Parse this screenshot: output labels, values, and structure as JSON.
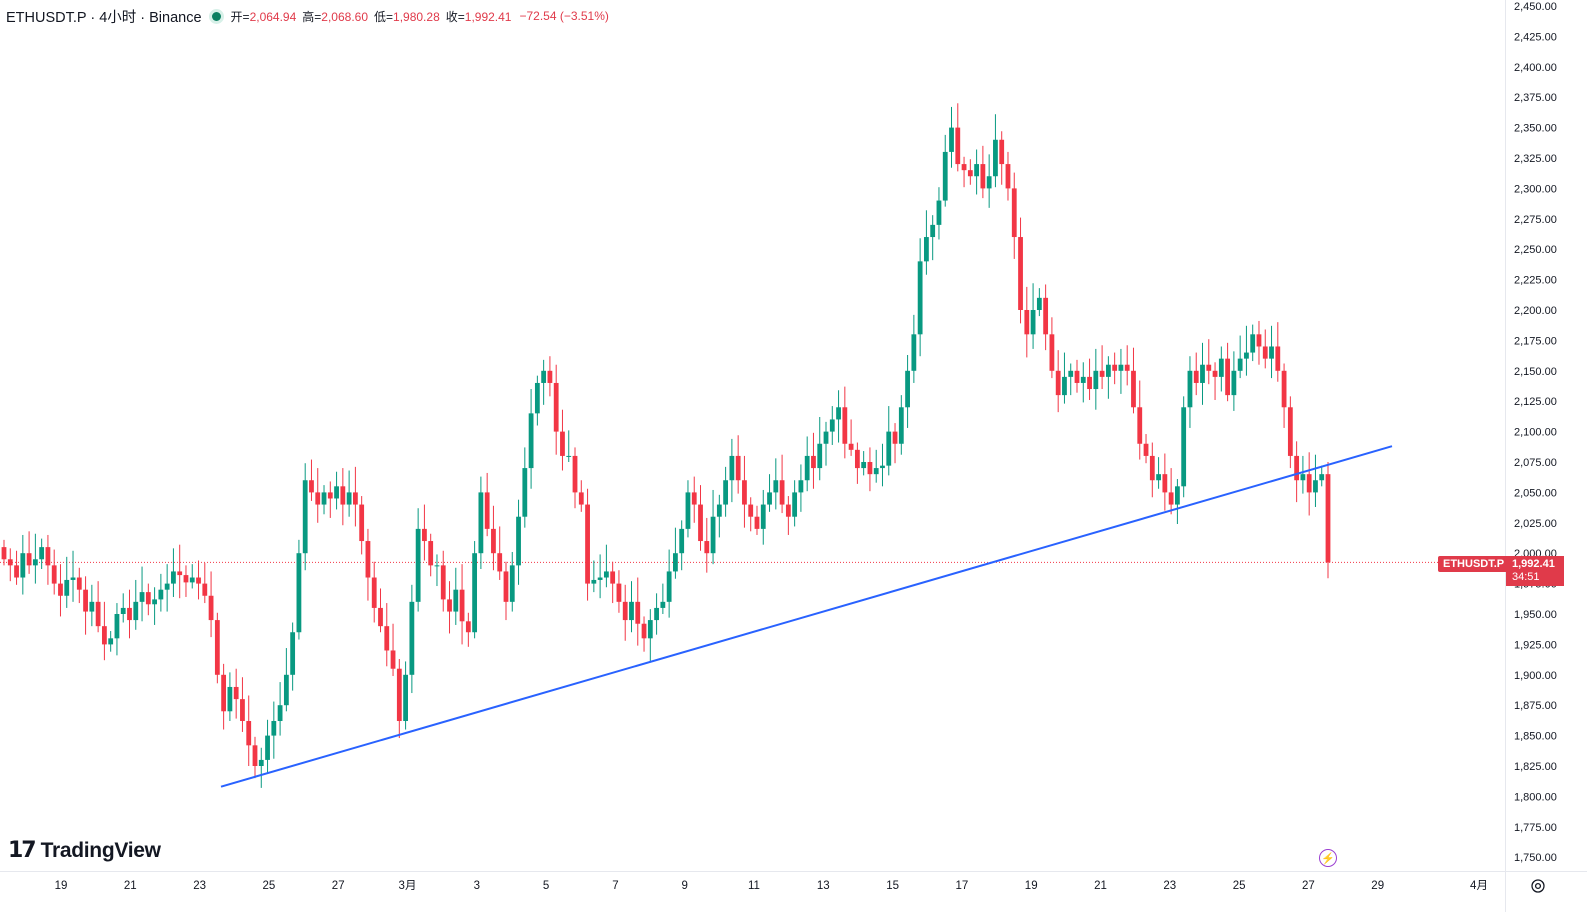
{
  "header": {
    "symbol": "ETHUSDT.P · 4小时 · Binance",
    "open_label": "开=",
    "open": "2,064.94",
    "high_label": "高=",
    "high": "2,068.60",
    "low_label": "低=",
    "low": "1,980.28",
    "close_label": "收=",
    "close": "1,992.41",
    "change": "−72.54 (−3.51%)"
  },
  "colors": {
    "up": "#089981",
    "down": "#f23645",
    "trendline": "#2962ff",
    "axis_text": "#131722"
  },
  "brand": "TradingView",
  "last_price_label": "ETHUSDT.P",
  "last_price": "1,992.41",
  "countdown": "34:51",
  "chart_data": {
    "type": "candlestick",
    "interval": "4h",
    "ylim": [
      1740,
      2450
    ],
    "y_ticks": [
      "2,450.00",
      "2,425.00",
      "2,400.00",
      "2,375.00",
      "2,350.00",
      "2,325.00",
      "2,300.00",
      "2,275.00",
      "2,250.00",
      "2,225.00",
      "2,200.00",
      "2,175.00",
      "2,150.00",
      "2,125.00",
      "2,100.00",
      "2,075.00",
      "2,050.00",
      "2,025.00",
      "2,000.00",
      "1,975.00",
      "1,950.00",
      "1,925.00",
      "1,900.00",
      "1,875.00",
      "1,850.00",
      "1,825.00",
      "1,800.00",
      "1,775.00",
      "1,750.00"
    ],
    "x_ticks": [
      "19",
      "21",
      "23",
      "25",
      "27",
      "3月",
      "3",
      "5",
      "7",
      "9",
      "11",
      "13",
      "15",
      "17",
      "19",
      "21",
      "23",
      "25",
      "27",
      "29",
      "4月"
    ],
    "last_price": 1992.41,
    "trendline_note": "ascending support from Feb 24 low",
    "closes": [
      1995,
      1990,
      1980,
      2000,
      1990,
      1995,
      2005,
      1990,
      1975,
      1965,
      1978,
      1980,
      1970,
      1952,
      1960,
      1940,
      1925,
      1930,
      1950,
      1955,
      1945,
      1960,
      1968,
      1958,
      1962,
      1970,
      1975,
      1985,
      1982,
      1976,
      1980,
      1975,
      1965,
      1945,
      1900,
      1870,
      1890,
      1880,
      1862,
      1842,
      1825,
      1830,
      1850,
      1862,
      1875,
      1900,
      1935,
      2000,
      2060,
      2050,
      2040,
      2050,
      2045,
      2055,
      2040,
      2050,
      2040,
      2010,
      1980,
      1955,
      1940,
      1920,
      1905,
      1862,
      1900,
      1960,
      2020,
      2010,
      1990,
      1990,
      1962,
      1952,
      1970,
      1944,
      1935,
      2000,
      2050,
      2020,
      2000,
      1985,
      1960,
      1990,
      2030,
      2070,
      2115,
      2140,
      2150,
      2140,
      2100,
      2080,
      2080,
      2050,
      2040,
      1975,
      1978,
      1980,
      1985,
      1975,
      1960,
      1945,
      1960,
      1942,
      1930,
      1945,
      1955,
      1960,
      1985,
      2000,
      2020,
      2050,
      2040,
      2010,
      2000,
      2030,
      2040,
      2060,
      2080,
      2060,
      2040,
      2030,
      2020,
      2040,
      2050,
      2060,
      2040,
      2030,
      2050,
      2060,
      2080,
      2070,
      2090,
      2100,
      2110,
      2120,
      2090,
      2085,
      2070,
      2075,
      2065,
      2070,
      2072,
      2100,
      2090,
      2120,
      2150,
      2180,
      2240,
      2260,
      2270,
      2290,
      2330,
      2350,
      2320,
      2315,
      2310,
      2320,
      2300,
      2310,
      2340,
      2320,
      2300,
      2260,
      2200,
      2180,
      2200,
      2210,
      2180,
      2150,
      2130,
      2145,
      2150,
      2140,
      2145,
      2135,
      2150,
      2145,
      2155,
      2150,
      2155,
      2150,
      2120,
      2090,
      2080,
      2060,
      2065,
      2050,
      2040,
      2055,
      2120,
      2150,
      2140,
      2155,
      2150,
      2145,
      2160,
      2130,
      2150,
      2160,
      2165,
      2180,
      2170,
      2160,
      2170,
      2150,
      2120,
      2080,
      2060,
      2065,
      2050,
      2060,
      2065,
      1992.41
    ]
  }
}
